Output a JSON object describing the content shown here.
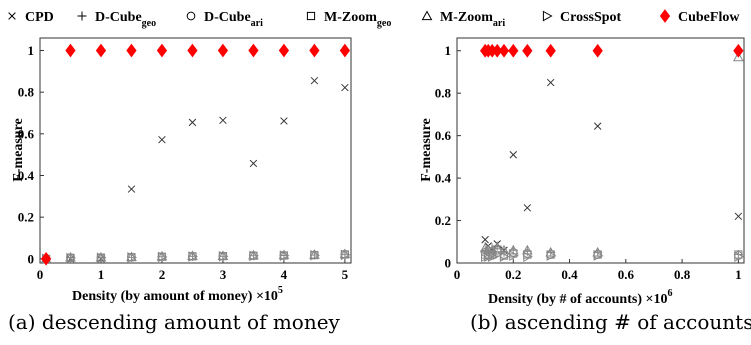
{
  "legend": [
    {
      "marker": "x",
      "label": "CPD",
      "sub": "",
      "color": "#000000"
    },
    {
      "marker": "plus",
      "label": "D-Cube",
      "sub": "geo",
      "color": "#000000"
    },
    {
      "marker": "circle",
      "label": "D-Cube",
      "sub": "ari",
      "color": "#000000"
    },
    {
      "marker": "square",
      "label": "M-Zoom",
      "sub": "geo",
      "color": "#000000"
    },
    {
      "marker": "triangle",
      "label": "M-Zoom",
      "sub": "ari",
      "color": "#000000"
    },
    {
      "marker": "triangle-right",
      "label": "CrossSpot",
      "sub": "",
      "color": "#000000"
    },
    {
      "marker": "diamond",
      "label": "CubeFlow",
      "sub": "",
      "color": "#ff0000"
    }
  ],
  "chart_data": [
    {
      "type": "scatter",
      "xlabel": "Density (by amount of money) ×10",
      "xlabel_exponent": "5",
      "ylabel": "F-measure",
      "caption": "(a) descending amount of money",
      "xlim": [
        0,
        5.1
      ],
      "ylim": [
        -0.02,
        1.06
      ],
      "xticks": [
        0,
        1,
        2,
        3,
        4,
        5
      ],
      "yticks": [
        0,
        0.2,
        0.4,
        0.6,
        0.8,
        1
      ],
      "xticklabels": [
        "0",
        "1",
        "2",
        "3",
        "4",
        "5"
      ],
      "yticklabels": [
        "0",
        "0.2",
        "0.4",
        "0.6",
        "0.8",
        "1"
      ],
      "series": [
        {
          "name": "CPD",
          "marker": "x",
          "color": "#333333",
          "x": [
            0.1,
            0.5,
            1,
            1.5,
            2,
            2.5,
            3,
            3.5,
            4,
            4.5,
            5
          ],
          "y": [
            0,
            0,
            0,
            0.335,
            0.572,
            0.655,
            0.665,
            0.458,
            0.662,
            0.855,
            0.822
          ]
        },
        {
          "name": "D-Cube geo",
          "marker": "plus",
          "color": "#888888",
          "x": [
            0.1,
            0.5,
            1,
            1.5,
            2,
            2.5,
            3,
            3.5,
            4,
            4.5,
            5
          ],
          "y": [
            0,
            0.005,
            0.005,
            0.007,
            0.01,
            0.012,
            0.012,
            0.015,
            0.016,
            0.018,
            0.02
          ]
        },
        {
          "name": "D-Cube ari",
          "marker": "circle",
          "color": "#888888",
          "x": [
            0.1,
            0.5,
            1,
            1.5,
            2,
            2.5,
            3,
            3.5,
            4,
            4.5,
            5
          ],
          "y": [
            0,
            0.006,
            0.006,
            0.008,
            0.011,
            0.013,
            0.013,
            0.016,
            0.017,
            0.019,
            0.022
          ]
        },
        {
          "name": "M-Zoom geo",
          "marker": "square",
          "color": "#888888",
          "x": [
            0.1,
            0.5,
            1,
            1.5,
            2,
            2.5,
            3,
            3.5,
            4,
            4.5,
            5
          ],
          "y": [
            0,
            0.005,
            0.006,
            0.008,
            0.01,
            0.012,
            0.013,
            0.015,
            0.016,
            0.018,
            0.021
          ]
        },
        {
          "name": "M-Zoom ari",
          "marker": "triangle",
          "color": "#888888",
          "x": [
            0.1,
            0.5,
            1,
            1.5,
            2,
            2.5,
            3,
            3.5,
            4,
            4.5,
            5
          ],
          "y": [
            0,
            0.007,
            0.007,
            0.009,
            0.012,
            0.014,
            0.014,
            0.017,
            0.018,
            0.02,
            0.023
          ]
        },
        {
          "name": "CrossSpot",
          "marker": "triangle-right",
          "color": "#888888",
          "x": [
            0.1,
            0.5,
            1,
            1.5,
            2,
            2.5,
            3,
            3.5,
            4,
            4.5,
            5
          ],
          "y": [
            0,
            0.004,
            0.005,
            0.007,
            0.009,
            0.011,
            0.012,
            0.014,
            0.015,
            0.017,
            0.019
          ]
        },
        {
          "name": "CubeFlow",
          "marker": "diamond",
          "color": "#ff0000",
          "x": [
            0.1,
            0.5,
            1,
            1.5,
            2,
            2.5,
            3,
            3.5,
            4,
            4.5,
            5
          ],
          "y": [
            0,
            1,
            1,
            1,
            1,
            1,
            1,
            1,
            1,
            1,
            1
          ]
        }
      ]
    },
    {
      "type": "scatter",
      "xlabel": "Density (by # of accounts) ×10",
      "xlabel_exponent": "6",
      "ylabel": "F-measure",
      "caption": "(b) ascending # of accounts",
      "xlim": [
        0,
        1.02
      ],
      "ylim": [
        0,
        1.06
      ],
      "xticks": [
        0,
        0.2,
        0.4,
        0.6,
        0.8,
        1
      ],
      "yticks": [
        0,
        0.2,
        0.4,
        0.6,
        0.8,
        1
      ],
      "xticklabels": [
        "0",
        "0.2",
        "0.4",
        "0.6",
        "0.8",
        "1"
      ],
      "yticklabels": [
        "0",
        "0.2",
        "0.4",
        "0.6",
        "0.8",
        "1"
      ],
      "series": [
        {
          "name": "CPD",
          "marker": "x",
          "color": "#333333",
          "x": [
            0.1,
            0.111,
            0.125,
            0.143,
            0.167,
            0.2,
            0.25,
            0.333,
            0.5,
            1
          ],
          "y": [
            0.11,
            0.08,
            0.06,
            0.09,
            0.06,
            0.51,
            0.26,
            0.85,
            0.645,
            0.22
          ]
        },
        {
          "name": "D-Cube geo",
          "marker": "plus",
          "color": "#888888",
          "x": [
            0.1,
            0.111,
            0.125,
            0.143,
            0.167,
            0.2,
            0.25,
            0.333,
            0.5,
            1
          ],
          "y": [
            0.06,
            0.05,
            0.07,
            0.08,
            0.05,
            0.06,
            0.055,
            0.05,
            0.05,
            0.04
          ]
        },
        {
          "name": "D-Cube ari",
          "marker": "circle",
          "color": "#888888",
          "x": [
            0.1,
            0.111,
            0.125,
            0.143,
            0.167,
            0.2,
            0.25,
            0.333,
            0.5,
            1
          ],
          "y": [
            0.05,
            0.04,
            0.05,
            0.06,
            0.04,
            0.05,
            0.045,
            0.04,
            0.04,
            0.035
          ]
        },
        {
          "name": "M-Zoom geo",
          "marker": "square",
          "color": "#888888",
          "x": [
            0.1,
            0.111,
            0.125,
            0.143,
            0.167,
            0.2,
            0.25,
            0.333,
            0.5,
            1
          ],
          "y": [
            0.04,
            0.035,
            0.04,
            0.05,
            0.035,
            0.045,
            0.04,
            0.04,
            0.04,
            0.04
          ]
        },
        {
          "name": "M-Zoom ari",
          "marker": "triangle",
          "color": "#888888",
          "x": [
            0.1,
            0.111,
            0.125,
            0.143,
            0.167,
            0.2,
            0.25,
            0.333,
            0.5,
            1
          ],
          "y": [
            0.07,
            0.06,
            0.06,
            0.07,
            0.06,
            0.06,
            0.06,
            0.05,
            0.05,
            0.97
          ]
        },
        {
          "name": "CrossSpot",
          "marker": "triangle-right",
          "color": "#888888",
          "x": [
            0.1,
            0.111,
            0.125,
            0.143,
            0.167,
            0.2,
            0.25,
            0.333,
            0.5,
            1
          ],
          "y": [
            0.03,
            0.03,
            0.03,
            0.04,
            0.03,
            0.035,
            0.03,
            0.035,
            0.035,
            0.03
          ]
        },
        {
          "name": "CubeFlow",
          "marker": "diamond",
          "color": "#ff0000",
          "x": [
            0.1,
            0.111,
            0.125,
            0.143,
            0.167,
            0.2,
            0.25,
            0.333,
            0.5,
            1
          ],
          "y": [
            1,
            1,
            1,
            1,
            1,
            1,
            1,
            1,
            1,
            1
          ]
        }
      ]
    }
  ]
}
